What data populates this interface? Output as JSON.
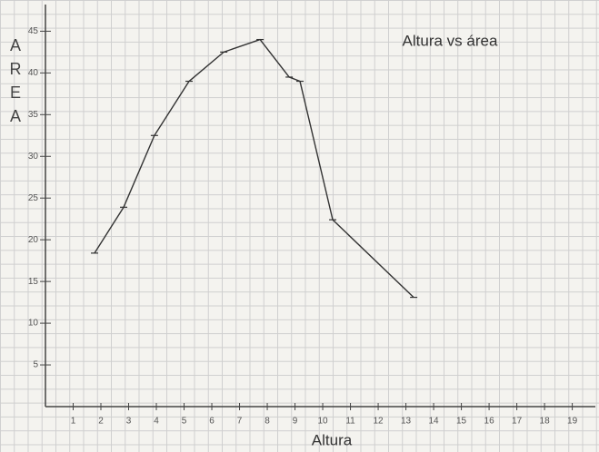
{
  "chart_data": {
    "type": "line",
    "title": "Altura vs área",
    "x_label": "Altura",
    "y_label": "AREA",
    "x": [
      1.77,
      2.82,
      3.93,
      5.18,
      6.43,
      7.74,
      8.79,
      9.18,
      10.36,
      13.28
    ],
    "series": [
      {
        "values": [
          18.4,
          23.9,
          32.5,
          39,
          42.5,
          44,
          39.5,
          39,
          22.4,
          13.1
        ],
        "color": "#333333"
      }
    ],
    "xlim": [
      0,
      19.8
    ],
    "ylim": [
      0,
      47
    ],
    "xticks": [
      1,
      2,
      3,
      4,
      5,
      6,
      7,
      8,
      9,
      10,
      11,
      12,
      13,
      14,
      15,
      16,
      17,
      18,
      19
    ],
    "yticks": [
      5,
      10,
      15,
      20,
      25,
      30,
      35,
      40,
      45
    ]
  }
}
